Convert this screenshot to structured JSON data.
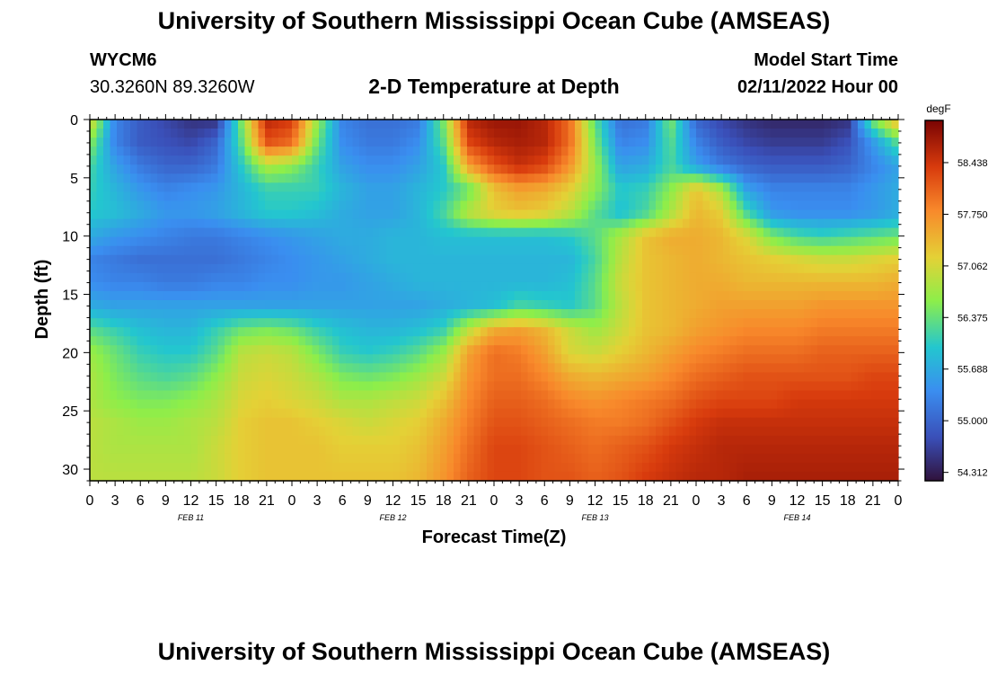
{
  "page": {
    "title": "University of Southern Mississippi Ocean Cube (AMSEAS)",
    "bottom_title": "University of Southern Mississippi Ocean Cube (AMSEAS)",
    "station_id": "WYCM6",
    "station_coords": "30.3260N  89.3260W",
    "plot_title": "2-D Temperature at Depth",
    "model_start_label": "Model Start Time",
    "model_start_value": "02/11/2022 Hour 00"
  },
  "chart_data": {
    "type": "heatmap",
    "title": "2-D Temperature at Depth",
    "xlabel": "Forecast Time(Z)",
    "ylabel": "Depth (ft)",
    "x_range_hours": [
      0,
      96
    ],
    "ylim": [
      0,
      31
    ],
    "y_ticks": [
      0,
      5,
      10,
      15,
      20,
      25,
      30
    ],
    "x_tick_labels": [
      "0",
      "3",
      "6",
      "9",
      "12",
      "15",
      "18",
      "21",
      "0",
      "3",
      "6",
      "9",
      "12",
      "15",
      "18",
      "21",
      "0",
      "3",
      "6",
      "9",
      "12",
      "15",
      "18",
      "21",
      "0",
      "3",
      "6",
      "9",
      "12",
      "15",
      "18",
      "21",
      "0"
    ],
    "date_labels": [
      {
        "label": "FEB 11",
        "hour": 12
      },
      {
        "label": "FEB 12",
        "hour": 36
      },
      {
        "label": "FEB 13",
        "hour": 60
      },
      {
        "label": "FEB 14",
        "hour": 84
      }
    ],
    "colorbar": {
      "units": "degF",
      "min": 54.2,
      "max": 59.0,
      "ticks": [
        "58.438",
        "57.750",
        "57.062",
        "56.375",
        "55.688",
        "55.000",
        "54.312"
      ]
    },
    "temperature_grid": {
      "depths_ft": [
        0,
        2,
        4,
        6,
        8,
        10,
        12,
        14,
        16,
        18,
        20,
        22,
        24,
        26,
        28,
        31
      ],
      "hours": [
        0,
        3,
        6,
        9,
        12,
        15,
        18,
        21,
        24,
        27,
        30,
        33,
        36,
        39,
        42,
        45,
        48,
        51,
        54,
        57,
        60,
        63,
        66,
        69,
        72,
        75,
        78,
        81,
        84,
        87,
        90,
        93,
        96
      ],
      "values_degF": [
        [
          57.2,
          55.3,
          54.9,
          54.7,
          54.5,
          54.5,
          56.5,
          58.6,
          58.4,
          56.7,
          55.3,
          55.1,
          55.1,
          55.2,
          56.5,
          58.6,
          58.8,
          58.8,
          58.6,
          58.0,
          56.3,
          55.1,
          55.2,
          56.5,
          55.0,
          54.7,
          54.5,
          54.4,
          54.4,
          54.4,
          54.5,
          56.5,
          57.5
        ],
        [
          56.6,
          55.3,
          54.9,
          54.8,
          54.7,
          55.0,
          56.3,
          58.2,
          58.0,
          56.4,
          55.4,
          55.2,
          55.2,
          55.4,
          56.3,
          58.3,
          58.6,
          58.7,
          58.6,
          58.0,
          56.5,
          55.3,
          55.4,
          56.3,
          55.3,
          54.9,
          54.7,
          54.6,
          54.6,
          54.6,
          54.8,
          55.5,
          56.3
        ],
        [
          56.2,
          55.6,
          55.2,
          55.0,
          55.0,
          55.2,
          56.0,
          56.8,
          56.6,
          56.1,
          55.6,
          55.4,
          55.4,
          55.6,
          56.0,
          57.6,
          58.2,
          58.5,
          58.3,
          57.7,
          56.7,
          55.6,
          55.7,
          56.2,
          55.6,
          55.2,
          55.0,
          54.9,
          54.9,
          54.9,
          55.0,
          55.3,
          55.6
        ],
        [
          56.1,
          55.8,
          55.5,
          55.3,
          55.4,
          55.5,
          55.8,
          56.1,
          56.1,
          56.1,
          55.8,
          55.6,
          55.6,
          55.8,
          56.0,
          56.4,
          57.3,
          57.6,
          57.5,
          57.2,
          56.6,
          56.0,
          56.1,
          56.6,
          57.3,
          56.8,
          55.6,
          55.3,
          55.3,
          55.3,
          55.3,
          55.5,
          55.7
        ],
        [
          56.0,
          55.9,
          55.7,
          55.5,
          55.5,
          55.6,
          55.8,
          56.0,
          56.0,
          55.9,
          55.7,
          55.6,
          55.6,
          55.8,
          56.2,
          56.9,
          57.2,
          57.3,
          57.2,
          56.9,
          56.3,
          55.9,
          56.2,
          56.8,
          57.4,
          57.2,
          56.2,
          55.5,
          55.4,
          55.4,
          55.4,
          55.5,
          55.7
        ],
        [
          55.7,
          55.5,
          55.4,
          55.3,
          55.2,
          55.2,
          55.3,
          55.4,
          55.5,
          55.6,
          55.7,
          55.7,
          55.8,
          55.8,
          55.9,
          55.9,
          55.9,
          55.9,
          55.9,
          56.0,
          56.3,
          56.8,
          57.3,
          57.5,
          57.5,
          57.4,
          57.1,
          56.5,
          56.2,
          56.1,
          56.2,
          56.3,
          56.4
        ],
        [
          55.3,
          55.2,
          55.1,
          55.1,
          55.1,
          55.1,
          55.2,
          55.3,
          55.4,
          55.5,
          55.6,
          55.7,
          55.8,
          55.8,
          55.8,
          55.8,
          55.8,
          55.8,
          55.8,
          55.8,
          56.2,
          56.9,
          57.3,
          57.4,
          57.5,
          57.4,
          57.3,
          57.2,
          57.1,
          57.0,
          57.0,
          57.1,
          57.2
        ],
        [
          55.4,
          55.3,
          55.3,
          55.2,
          55.2,
          55.3,
          55.3,
          55.4,
          55.4,
          55.5,
          55.5,
          55.6,
          55.7,
          55.8,
          55.8,
          55.8,
          55.8,
          55.8,
          55.8,
          55.9,
          56.3,
          57.0,
          57.3,
          57.4,
          57.5,
          57.5,
          57.4,
          57.4,
          57.4,
          57.4,
          57.4,
          57.4,
          57.5
        ],
        [
          55.7,
          55.6,
          55.6,
          55.6,
          55.6,
          55.6,
          55.6,
          55.6,
          55.6,
          55.6,
          55.6,
          55.6,
          55.6,
          55.6,
          55.7,
          55.8,
          55.9,
          56.2,
          56.1,
          56.0,
          56.3,
          56.9,
          57.3,
          57.4,
          57.5,
          57.6,
          57.6,
          57.6,
          57.6,
          57.7,
          57.7,
          57.7,
          57.7
        ],
        [
          56.3,
          56.1,
          55.9,
          55.8,
          55.8,
          56.1,
          56.4,
          56.5,
          56.4,
          56.1,
          55.9,
          55.8,
          55.8,
          55.9,
          56.1,
          56.9,
          57.5,
          57.6,
          57.4,
          57.0,
          56.7,
          57.0,
          57.3,
          57.4,
          57.6,
          57.7,
          57.8,
          57.8,
          57.8,
          57.9,
          57.9,
          57.9,
          57.9
        ],
        [
          56.7,
          56.4,
          56.1,
          56.0,
          56.0,
          56.3,
          56.9,
          57.0,
          56.9,
          56.5,
          56.1,
          56.0,
          56.1,
          56.3,
          56.7,
          57.6,
          58.0,
          57.9,
          57.6,
          57.1,
          57.0,
          57.2,
          57.4,
          57.6,
          57.8,
          57.9,
          58.0,
          58.0,
          58.0,
          58.1,
          58.1,
          58.1,
          58.1
        ],
        [
          56.8,
          56.5,
          56.3,
          56.2,
          56.3,
          56.6,
          57.0,
          57.1,
          57.0,
          56.8,
          56.5,
          56.4,
          56.5,
          56.7,
          57.0,
          57.7,
          58.0,
          58.0,
          57.8,
          57.5,
          57.4,
          57.5,
          57.6,
          57.8,
          58.0,
          58.1,
          58.2,
          58.2,
          58.2,
          58.2,
          58.2,
          58.3,
          58.3
        ],
        [
          56.8,
          56.6,
          56.5,
          56.5,
          56.6,
          56.8,
          57.1,
          57.2,
          57.1,
          57.0,
          56.8,
          56.8,
          56.9,
          57.0,
          57.3,
          57.8,
          58.1,
          58.1,
          58.0,
          57.8,
          57.7,
          57.8,
          57.9,
          58.0,
          58.2,
          58.3,
          58.3,
          58.3,
          58.4,
          58.4,
          58.4,
          58.4,
          58.4
        ],
        [
          56.9,
          56.8,
          56.7,
          56.7,
          56.8,
          56.9,
          57.2,
          57.3,
          57.3,
          57.2,
          57.1,
          57.0,
          57.1,
          57.2,
          57.5,
          57.9,
          58.2,
          58.2,
          58.1,
          58.0,
          57.9,
          57.9,
          58.0,
          58.2,
          58.4,
          58.5,
          58.5,
          58.5,
          58.5,
          58.5,
          58.5,
          58.5,
          58.5
        ],
        [
          56.9,
          56.8,
          56.8,
          56.8,
          56.8,
          57.0,
          57.2,
          57.3,
          57.3,
          57.3,
          57.2,
          57.2,
          57.2,
          57.3,
          57.6,
          58.0,
          58.3,
          58.3,
          58.2,
          58.1,
          58.0,
          58.1,
          58.2,
          58.4,
          58.5,
          58.6,
          58.6,
          58.6,
          58.6,
          58.6,
          58.6,
          58.6,
          58.6
        ],
        [
          56.9,
          56.9,
          56.9,
          56.9,
          56.9,
          57.0,
          57.2,
          57.3,
          57.3,
          57.3,
          57.3,
          57.3,
          57.3,
          57.4,
          57.7,
          58.1,
          58.3,
          58.3,
          58.2,
          58.2,
          58.1,
          58.2,
          58.4,
          58.5,
          58.6,
          58.6,
          58.7,
          58.7,
          58.7,
          58.7,
          58.7,
          58.7,
          58.7
        ]
      ]
    }
  }
}
